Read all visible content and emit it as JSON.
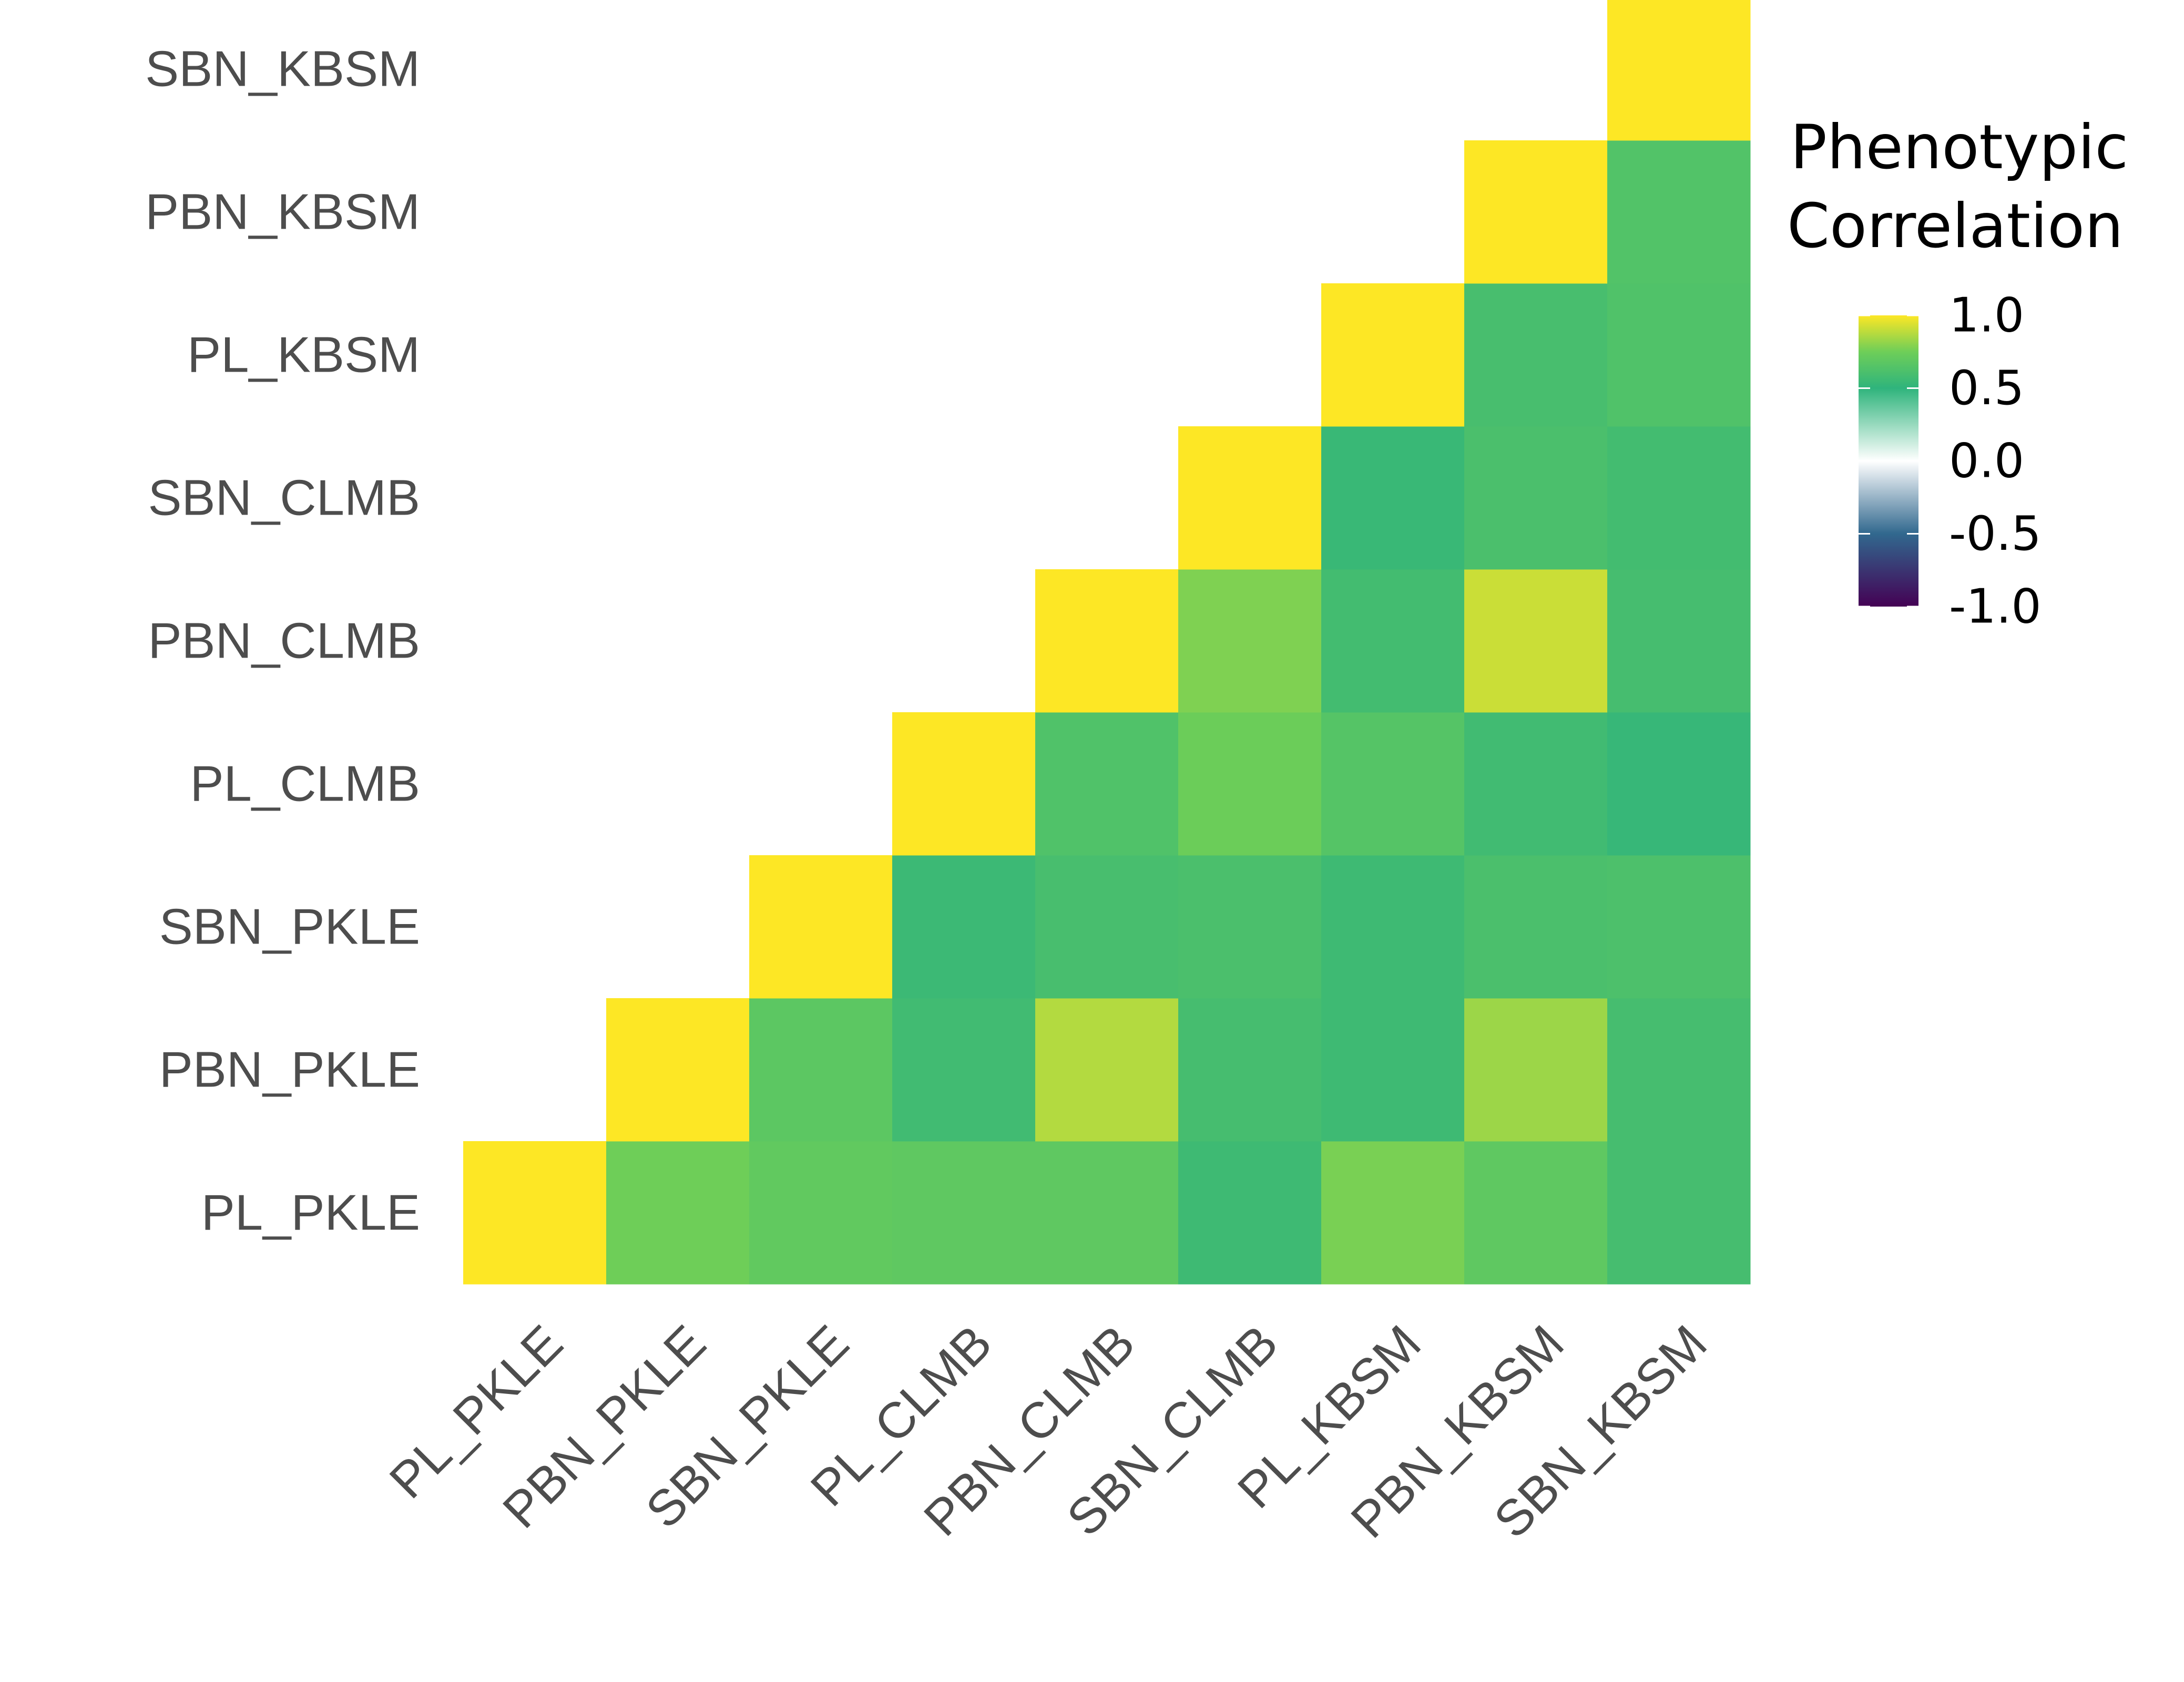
{
  "chart_data": {
    "type": "heatmap",
    "categories": [
      "PL_PKLE",
      "PBN_PKLE",
      "SBN_PKLE",
      "PL_CLMB",
      "PBN_CLMB",
      "SBN_CLMB",
      "PL_KBSM",
      "PBN_KBSM",
      "SBN_KBSM"
    ],
    "triangle": "lower",
    "cells": [
      {
        "x": "PL_PKLE",
        "y": "PL_PKLE",
        "value": 1.0
      },
      {
        "x": "PBN_PKLE",
        "y": "PL_PKLE",
        "value": 0.75
      },
      {
        "x": "SBN_PKLE",
        "y": "PL_PKLE",
        "value": 0.7
      },
      {
        "x": "PL_CLMB",
        "y": "PL_PKLE",
        "value": 0.69
      },
      {
        "x": "PBN_CLMB",
        "y": "PL_PKLE",
        "value": 0.69
      },
      {
        "x": "SBN_CLMB",
        "y": "PL_PKLE",
        "value": 0.56
      },
      {
        "x": "PL_KBSM",
        "y": "PL_PKLE",
        "value": 0.77
      },
      {
        "x": "PBN_KBSM",
        "y": "PL_PKLE",
        "value": 0.69
      },
      {
        "x": "SBN_KBSM",
        "y": "PL_PKLE",
        "value": 0.59
      },
      {
        "x": "PBN_PKLE",
        "y": "PBN_PKLE",
        "value": 1.0
      },
      {
        "x": "SBN_PKLE",
        "y": "PBN_PKLE",
        "value": 0.68
      },
      {
        "x": "PL_CLMB",
        "y": "PBN_PKLE",
        "value": 0.57
      },
      {
        "x": "PBN_CLMB",
        "y": "PBN_PKLE",
        "value": 0.87
      },
      {
        "x": "SBN_CLMB",
        "y": "PBN_PKLE",
        "value": 0.59
      },
      {
        "x": "PL_KBSM",
        "y": "PBN_PKLE",
        "value": 0.56
      },
      {
        "x": "PBN_KBSM",
        "y": "PBN_PKLE",
        "value": 0.83
      },
      {
        "x": "SBN_KBSM",
        "y": "PBN_PKLE",
        "value": 0.59
      },
      {
        "x": "SBN_PKLE",
        "y": "SBN_PKLE",
        "value": 1.0
      },
      {
        "x": "PL_CLMB",
        "y": "SBN_PKLE",
        "value": 0.55
      },
      {
        "x": "PBN_CLMB",
        "y": "SBN_PKLE",
        "value": 0.6
      },
      {
        "x": "SBN_CLMB",
        "y": "SBN_PKLE",
        "value": 0.61
      },
      {
        "x": "PL_KBSM",
        "y": "SBN_PKLE",
        "value": 0.56
      },
      {
        "x": "PBN_KBSM",
        "y": "SBN_PKLE",
        "value": 0.61
      },
      {
        "x": "SBN_KBSM",
        "y": "SBN_PKLE",
        "value": 0.62
      },
      {
        "x": "PL_CLMB",
        "y": "PL_CLMB",
        "value": 1.0
      },
      {
        "x": "PBN_CLMB",
        "y": "PL_CLMB",
        "value": 0.63
      },
      {
        "x": "SBN_CLMB",
        "y": "PL_CLMB",
        "value": 0.74
      },
      {
        "x": "PL_KBSM",
        "y": "PL_CLMB",
        "value": 0.65
      },
      {
        "x": "PBN_KBSM",
        "y": "PL_CLMB",
        "value": 0.57
      },
      {
        "x": "SBN_KBSM",
        "y": "PL_CLMB",
        "value": 0.53
      },
      {
        "x": "PBN_CLMB",
        "y": "PBN_CLMB",
        "value": 1.0
      },
      {
        "x": "SBN_CLMB",
        "y": "PBN_CLMB",
        "value": 0.78
      },
      {
        "x": "PL_KBSM",
        "y": "PBN_CLMB",
        "value": 0.58
      },
      {
        "x": "PBN_KBSM",
        "y": "PBN_CLMB",
        "value": 0.91
      },
      {
        "x": "SBN_KBSM",
        "y": "PBN_CLMB",
        "value": 0.59
      },
      {
        "x": "SBN_CLMB",
        "y": "SBN_CLMB",
        "value": 1.0
      },
      {
        "x": "PL_KBSM",
        "y": "SBN_CLMB",
        "value": 0.54
      },
      {
        "x": "PBN_KBSM",
        "y": "SBN_CLMB",
        "value": 0.61
      },
      {
        "x": "SBN_KBSM",
        "y": "SBN_CLMB",
        "value": 0.58
      },
      {
        "x": "PL_KBSM",
        "y": "PL_KBSM",
        "value": 1.0
      },
      {
        "x": "PBN_KBSM",
        "y": "PL_KBSM",
        "value": 0.6
      },
      {
        "x": "SBN_KBSM",
        "y": "PL_KBSM",
        "value": 0.63
      },
      {
        "x": "PBN_KBSM",
        "y": "PBN_KBSM",
        "value": 1.0
      },
      {
        "x": "SBN_KBSM",
        "y": "PBN_KBSM",
        "value": 0.64
      },
      {
        "x": "SBN_KBSM",
        "y": "SBN_KBSM",
        "value": 1.0
      }
    ],
    "legend": {
      "title_lines": [
        "Phenotypic",
        "Correlation"
      ],
      "ticks": [
        1.0,
        0.5,
        0.0,
        -0.5,
        -1.0
      ],
      "tick_labels": [
        "1.0",
        "0.5",
        "0.0",
        "-0.5",
        "-1.0"
      ],
      "range": [
        -1.0,
        1.0
      ],
      "placement": "right",
      "color_stops": [
        {
          "value": -1.0,
          "color": "#440154"
        },
        {
          "value": -0.5,
          "color": "#31688e"
        },
        {
          "value": 0.0,
          "color": "#ffffff"
        },
        {
          "value": 0.5,
          "color": "#2fb47c"
        },
        {
          "value": 0.75,
          "color": "#6ece58"
        },
        {
          "value": 1.0,
          "color": "#fde725"
        }
      ]
    },
    "grid": false
  }
}
